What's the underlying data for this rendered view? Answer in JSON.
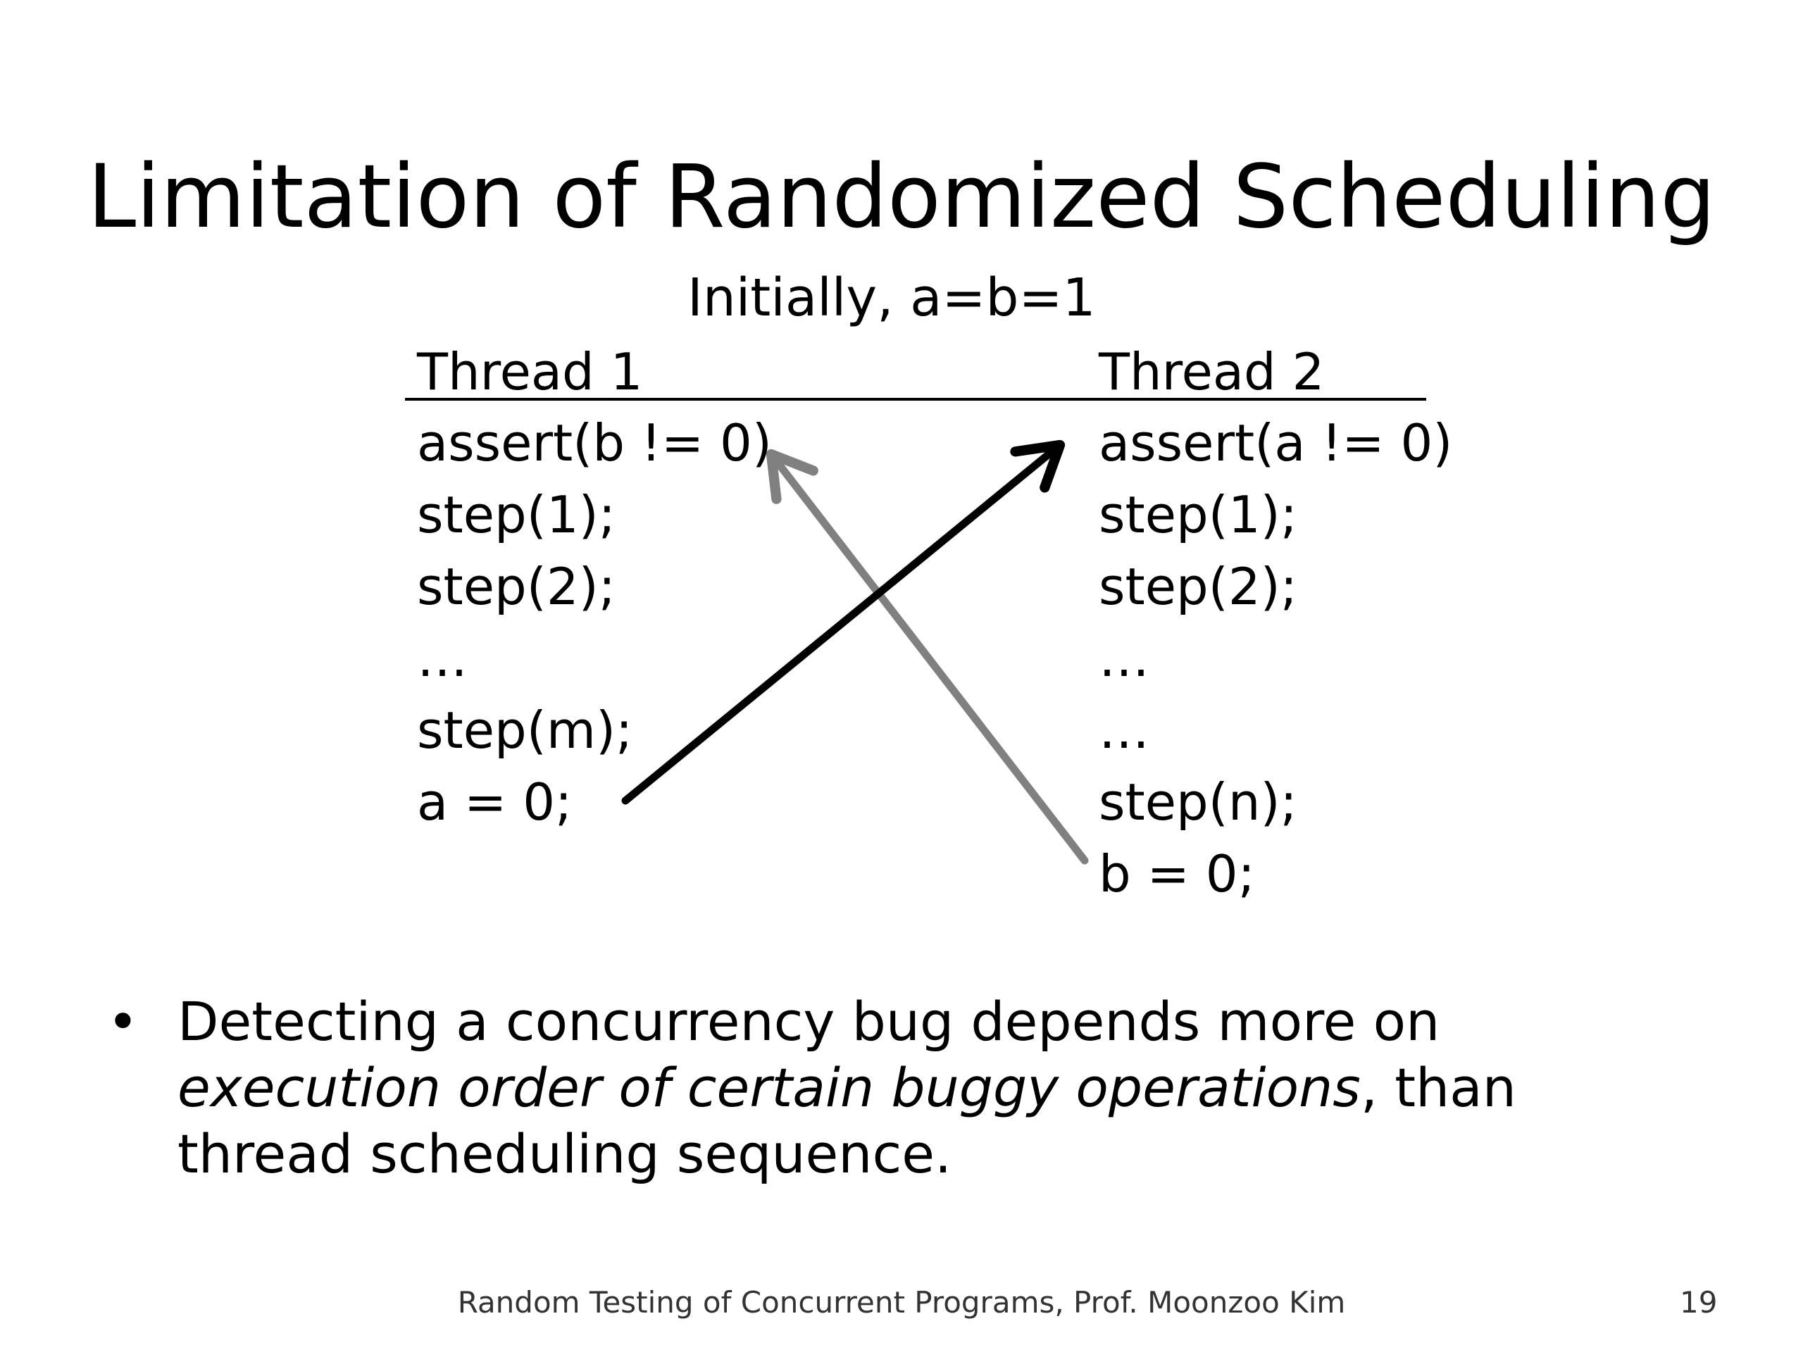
{
  "slide": {
    "title": "Limitation of Randomized Scheduling",
    "initially": "Initially,  a=b=1",
    "thread1": {
      "header": "Thread 1",
      "lines": [
        "assert(b != 0)",
        "step(1);",
        "step(2);",
        "…",
        "step(m);",
        "a = 0;"
      ]
    },
    "thread2": {
      "header": "Thread 2",
      "lines": [
        "assert(a != 0)",
        "step(1);",
        "step(2);",
        "…",
        "…",
        "step(n);",
        "b = 0;"
      ]
    },
    "arrows": [
      {
        "from": "thread1.a = 0;",
        "to": "thread2.assert(a != 0)",
        "color": "#000000"
      },
      {
        "from": "thread2.b = 0;",
        "to": "thread1.assert(b != 0)",
        "color": "#808080"
      }
    ],
    "bullet": {
      "marker": "•",
      "part1": "Detecting a concurrency bug depends more on ",
      "emphasis": "execution order of certain buggy operations",
      "part2": ", than thread scheduling sequence."
    },
    "footer": "Random Testing of Concurrent Programs, Prof. Moonzoo Kim",
    "page_number": "19"
  }
}
